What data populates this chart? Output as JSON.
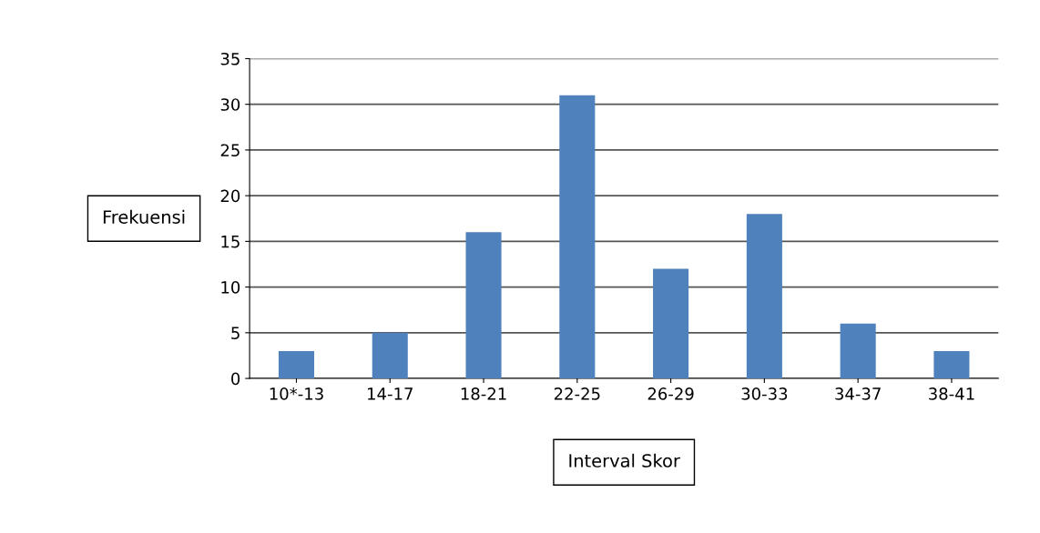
{
  "chart_data": {
    "type": "bar",
    "xlabel": "Interval Skor",
    "ylabel": "Frekuensi",
    "categories": [
      "10*-13",
      "14-17",
      "18-21",
      "22-25",
      "26-29",
      "30-33",
      "34-37",
      "38-41"
    ],
    "values": [
      3,
      5,
      16,
      31,
      12,
      18,
      6,
      3
    ],
    "color": "#4f81bd",
    "ylim": [
      0,
      35
    ],
    "yticks": [
      0,
      5,
      10,
      15,
      20,
      25,
      30,
      35
    ],
    "grid": "y",
    "legend": false
  }
}
